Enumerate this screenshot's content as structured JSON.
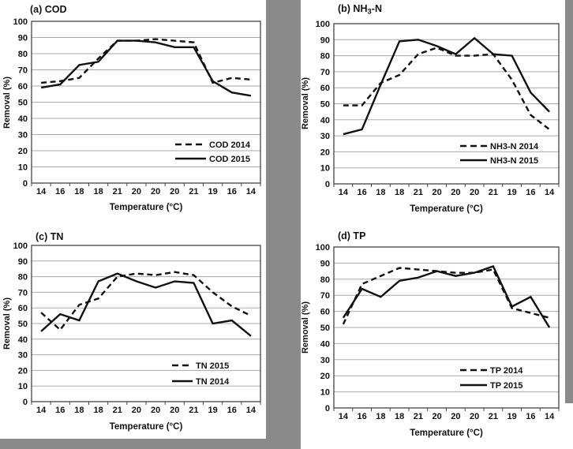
{
  "figure": {
    "description": "Four-panel line figure of removal efficiency (%) versus temperature (°C) over a treatment cycle",
    "colors": {
      "background": "#ffffff",
      "gutter_gray": "#8a8a8a",
      "series_line": "#111111",
      "gridline": "#aaaaaa",
      "plot_border": "#444444",
      "text": "#111111"
    }
  },
  "chart_data": [
    {
      "type": "line",
      "panel": "a",
      "title": "(a) COD",
      "xlabel": "Temperature (°C)",
      "ylabel": "Removal (%)",
      "ylim": [
        0,
        100
      ],
      "ytick_step": 10,
      "grid": true,
      "legend_position": "inside lower-right",
      "categories": [
        "14",
        "16",
        "18",
        "18",
        "21",
        "20",
        "20",
        "20",
        "21",
        "19",
        "16",
        "14"
      ],
      "series": [
        {
          "name": "COD 2014",
          "style": "dashed",
          "values": [
            62,
            63,
            65,
            77,
            88,
            88,
            89,
            88,
            87,
            62,
            65,
            64
          ]
        },
        {
          "name": "COD 2015",
          "style": "solid",
          "values": [
            59,
            61,
            73,
            75,
            88,
            88,
            87,
            84,
            84,
            63,
            56,
            54
          ]
        }
      ]
    },
    {
      "type": "line",
      "panel": "b",
      "title": "(b) NH3-N",
      "title_subscript": "3",
      "xlabel": "Temperature (°C)",
      "ylabel": "Removal (%)",
      "ylim": [
        0,
        100
      ],
      "ytick_step": 10,
      "grid": true,
      "legend_position": "inside lower-right",
      "categories": [
        "14",
        "16",
        "18",
        "18",
        "21",
        "20",
        "20",
        "20",
        "21",
        "19",
        "16",
        "14"
      ],
      "series": [
        {
          "name": "NH3-N 2014",
          "style": "dashed",
          "values": [
            49,
            49,
            63,
            68,
            81,
            85,
            80,
            80,
            81,
            65,
            43,
            34
          ]
        },
        {
          "name": "NH3-N 2015",
          "style": "solid",
          "values": [
            31,
            34,
            62,
            89,
            90,
            86,
            81,
            91,
            81,
            80,
            57,
            45
          ]
        }
      ]
    },
    {
      "type": "line",
      "panel": "c",
      "title": "(c) TN",
      "xlabel": "Temperature (°C)",
      "ylabel": "Removal (%)",
      "ylim": [
        0,
        100
      ],
      "ytick_step": 10,
      "grid": true,
      "legend_position": "inside lower-right",
      "categories": [
        "14",
        "16",
        "18",
        "18",
        "21",
        "20",
        "20",
        "20",
        "21",
        "19",
        "16",
        "14"
      ],
      "series": [
        {
          "name": "TN 2015",
          "style": "dashed",
          "values": [
            57,
            46,
            62,
            66,
            80,
            82,
            81,
            83,
            81,
            70,
            61,
            55
          ]
        },
        {
          "name": "TN 2014",
          "style": "solid",
          "values": [
            45,
            56,
            52,
            77,
            82,
            77,
            73,
            77,
            76,
            50,
            52,
            42
          ]
        }
      ]
    },
    {
      "type": "line",
      "panel": "d",
      "title": "(d) TP",
      "xlabel": "Temperature (°C)",
      "ylabel": "Removal (%)",
      "ylim": [
        0,
        100
      ],
      "ytick_step": 10,
      "grid": true,
      "legend_position": "inside lower-right",
      "categories": [
        "14",
        "16",
        "18",
        "18",
        "21",
        "20",
        "20",
        "20",
        "21",
        "19",
        "16",
        "14"
      ],
      "series": [
        {
          "name": "TP 2014",
          "style": "dashed",
          "values": [
            52,
            77,
            82,
            87,
            86,
            85,
            84,
            84,
            86,
            62,
            59,
            56
          ]
        },
        {
          "name": "TP 2015",
          "style": "solid",
          "values": [
            56,
            74,
            69,
            79,
            81,
            85,
            82,
            84,
            88,
            63,
            69,
            50
          ]
        }
      ]
    }
  ]
}
